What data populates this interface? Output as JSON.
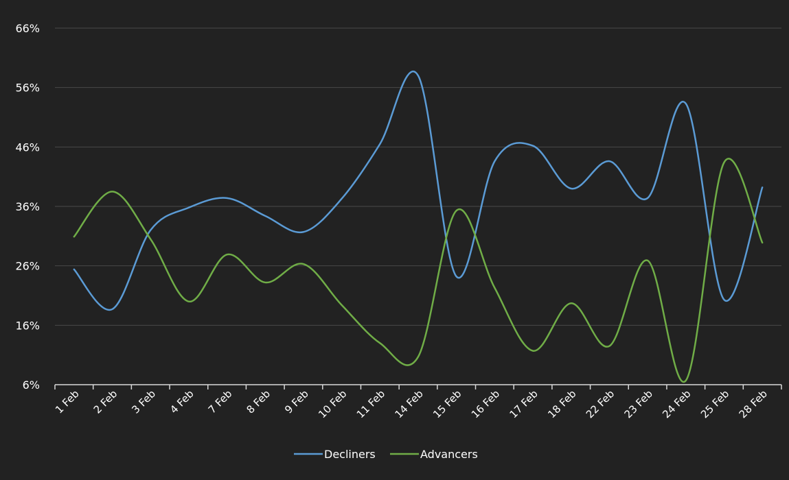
{
  "chart_data": {
    "type": "line",
    "title": "",
    "xlabel": "",
    "ylabel": "",
    "categories": [
      "1 Feb",
      "2 Feb",
      "3 Feb",
      "4 Feb",
      "7 Feb",
      "8 Feb",
      "9 Feb",
      "10 Feb",
      "11 Feb",
      "14 Feb",
      "15 Feb",
      "16 Feb",
      "17 Feb",
      "18 Feb",
      "22 Feb",
      "23 Feb",
      "24 Feb",
      "25 Feb",
      "28 Feb"
    ],
    "ylim": [
      6,
      66
    ],
    "yticks": [
      6,
      16,
      26,
      36,
      46,
      56,
      66
    ],
    "ytick_labels": [
      "6%",
      "16%",
      "26%",
      "36%",
      "46%",
      "56%",
      "66%"
    ],
    "grid": true,
    "smooth": true,
    "legend_position": "bottom",
    "series": [
      {
        "name": "Decliners",
        "color": "#5b9bd5",
        "values": [
          25.4,
          18.7,
          32.0,
          35.8,
          37.4,
          34.4,
          31.7,
          37.3,
          46.5,
          58.0,
          24.2,
          43.6,
          46.2,
          39.0,
          43.6,
          37.4,
          53.3,
          20.3,
          39.2
        ]
      },
      {
        "name": "Advancers",
        "color": "#70ad47",
        "values": [
          30.9,
          38.5,
          30.5,
          20.0,
          27.9,
          23.2,
          26.3,
          19.4,
          13.0,
          10.7,
          35.3,
          22.3,
          11.7,
          19.7,
          12.5,
          26.9,
          6.7,
          43.4,
          29.9
        ]
      }
    ]
  }
}
